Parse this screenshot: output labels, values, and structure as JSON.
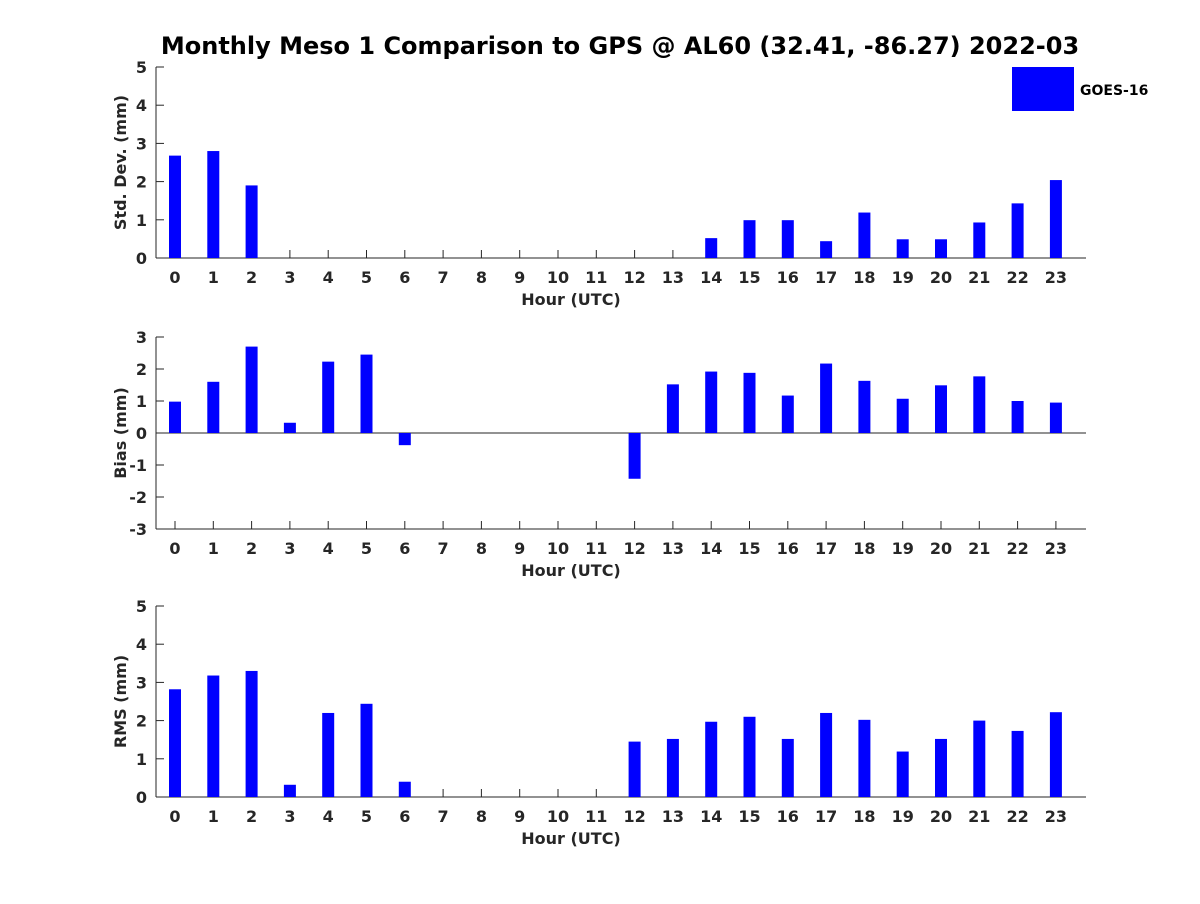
{
  "chart_data": {
    "title": "Monthly Meso 1 Comparison to GPS @ AL60 (32.41, -86.27) 2022-03",
    "legend": {
      "label": "GOES-16",
      "placement": "top-right"
    },
    "series_color": "#0000ff",
    "panels": [
      {
        "type": "bar",
        "xlabel": "Hour (UTC)",
        "ylabel": "Std. Dev. (mm)",
        "ylim": [
          0,
          5
        ],
        "yticks": [
          "0",
          "1",
          "2",
          "3",
          "4",
          "5"
        ],
        "categories": [
          "0",
          "1",
          "2",
          "3",
          "4",
          "5",
          "6",
          "7",
          "8",
          "9",
          "10",
          "11",
          "12",
          "13",
          "14",
          "15",
          "16",
          "17",
          "18",
          "19",
          "20",
          "21",
          "22",
          "23"
        ],
        "values": [
          2.68,
          2.8,
          1.9,
          null,
          null,
          null,
          null,
          null,
          null,
          null,
          null,
          null,
          null,
          null,
          0.52,
          0.99,
          0.99,
          0.44,
          1.19,
          0.49,
          0.49,
          0.93,
          1.43,
          2.04
        ],
        "zero_line": false
      },
      {
        "type": "bar",
        "xlabel": "Hour (UTC)",
        "ylabel": "Bias (mm)",
        "ylim": [
          -3,
          3
        ],
        "yticks": [
          "-3",
          "-2",
          "-1",
          "0",
          "1",
          "2",
          "3"
        ],
        "categories": [
          "0",
          "1",
          "2",
          "3",
          "4",
          "5",
          "6",
          "7",
          "8",
          "9",
          "10",
          "11",
          "12",
          "13",
          "14",
          "15",
          "16",
          "17",
          "18",
          "19",
          "20",
          "21",
          "22",
          "23"
        ],
        "values": [
          0.98,
          1.6,
          2.7,
          0.32,
          2.23,
          2.45,
          -0.38,
          null,
          null,
          null,
          null,
          null,
          -1.43,
          1.52,
          1.92,
          1.88,
          1.17,
          2.17,
          1.63,
          1.07,
          1.49,
          1.77,
          1.0,
          0.95
        ],
        "zero_line": true
      },
      {
        "type": "bar",
        "xlabel": "Hour (UTC)",
        "ylabel": "RMS (mm)",
        "ylim": [
          0,
          5
        ],
        "yticks": [
          "0",
          "1",
          "2",
          "3",
          "4",
          "5"
        ],
        "categories": [
          "0",
          "1",
          "2",
          "3",
          "4",
          "5",
          "6",
          "7",
          "8",
          "9",
          "10",
          "11",
          "12",
          "13",
          "14",
          "15",
          "16",
          "17",
          "18",
          "19",
          "20",
          "21",
          "22",
          "23"
        ],
        "values": [
          2.82,
          3.18,
          3.3,
          0.32,
          2.2,
          2.44,
          0.4,
          null,
          null,
          null,
          null,
          null,
          1.45,
          1.52,
          1.97,
          2.1,
          1.52,
          2.2,
          2.02,
          1.19,
          1.52,
          2.0,
          1.73,
          2.22
        ],
        "zero_line": false
      }
    ]
  }
}
